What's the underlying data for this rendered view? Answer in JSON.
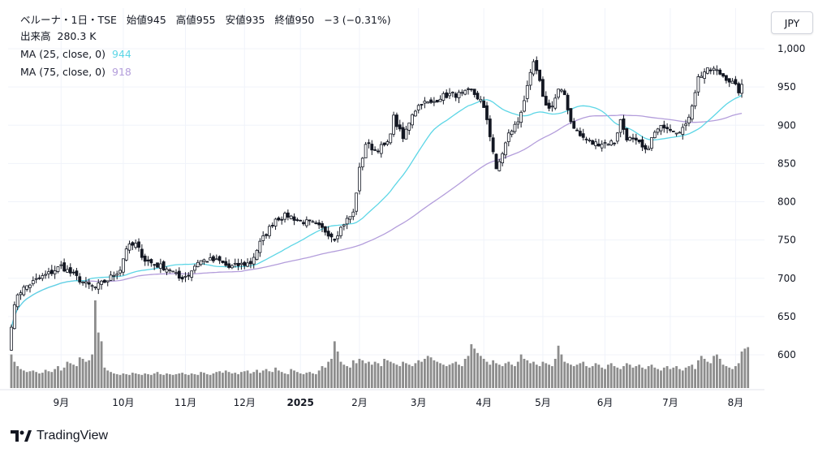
{
  "legend": {
    "symbol": "ベルーナ・1日・TSE",
    "open_label": "始値",
    "open": "945",
    "high_label": "高値",
    "high": "955",
    "low_label": "安値",
    "low": "935",
    "close_label": "終値",
    "close": "950",
    "change": "−3 (−0.31%)",
    "volume_label": "出来高",
    "volume": "280.3 K",
    "ma25_label": "MA (25, close, 0)",
    "ma25_value": "944",
    "ma75_label": "MA (75, close, 0)",
    "ma75_value": "918"
  },
  "currency_button": "JPY",
  "brand": "TradingView",
  "colors": {
    "candle": "#131722",
    "volume": "#8c8c8c",
    "ma25": "#5dd6e6",
    "ma75": "#b39ddb",
    "grid": "#f0f3fa"
  },
  "chart_data": {
    "type": "candlestick",
    "title": "ベルーナ・1日・TSE",
    "currency": "JPY",
    "y_ticks": [
      "1,000",
      "950",
      "900",
      "850",
      "800",
      "750",
      "700",
      "650",
      "600"
    ],
    "ylim": [
      555,
      1010
    ],
    "x_ticks": [
      "9月",
      "10月",
      "11月",
      "12月",
      "2025",
      "2月",
      "3月",
      "4月",
      "5月",
      "6月",
      "7月",
      "8月"
    ],
    "x_tick_index": [
      16,
      36,
      56,
      75,
      93,
      112,
      131,
      152,
      171,
      191,
      212,
      233
    ],
    "price_anchors": [
      [
        0,
        640
      ],
      [
        1,
        662
      ],
      [
        2,
        680
      ],
      [
        5,
        690
      ],
      [
        9,
        700
      ],
      [
        13,
        708
      ],
      [
        16,
        716
      ],
      [
        20,
        704
      ],
      [
        24,
        692
      ],
      [
        27,
        688
      ],
      [
        31,
        698
      ],
      [
        35,
        712
      ],
      [
        37,
        740
      ],
      [
        40,
        744
      ],
      [
        43,
        724
      ],
      [
        46,
        718
      ],
      [
        51,
        712
      ],
      [
        54,
        700
      ],
      [
        57,
        705
      ],
      [
        60,
        722
      ],
      [
        63,
        724
      ],
      [
        67,
        722
      ],
      [
        70,
        714
      ],
      [
        74,
        718
      ],
      [
        77,
        720
      ],
      [
        80,
        746
      ],
      [
        85,
        778
      ],
      [
        89,
        782
      ],
      [
        93,
        775
      ],
      [
        97,
        771
      ],
      [
        101,
        762
      ],
      [
        104,
        753
      ],
      [
        107,
        772
      ],
      [
        110,
        785
      ],
      [
        112,
        842
      ],
      [
        114,
        876
      ],
      [
        117,
        868
      ],
      [
        121,
        875
      ],
      [
        123,
        910
      ],
      [
        126,
        882
      ],
      [
        129,
        916
      ],
      [
        132,
        930
      ],
      [
        135,
        928
      ],
      [
        138,
        937
      ],
      [
        141,
        940
      ],
      [
        145,
        940
      ],
      [
        148,
        945
      ],
      [
        151,
        932
      ],
      [
        153,
        908
      ],
      [
        155,
        866
      ],
      [
        156,
        840
      ],
      [
        157,
        852
      ],
      [
        160,
        888
      ],
      [
        163,
        905
      ],
      [
        166,
        948
      ],
      [
        168,
        982
      ],
      [
        170,
        955
      ],
      [
        172,
        925
      ],
      [
        174,
        925
      ],
      [
        176,
        945
      ],
      [
        178,
        940
      ],
      [
        180,
        905
      ],
      [
        183,
        886
      ],
      [
        187,
        876
      ],
      [
        191,
        877
      ],
      [
        194,
        878
      ],
      [
        196,
        906
      ],
      [
        198,
        884
      ],
      [
        202,
        875
      ],
      [
        204,
        865
      ],
      [
        207,
        890
      ],
      [
        210,
        900
      ],
      [
        214,
        893
      ],
      [
        217,
        898
      ],
      [
        219,
        928
      ],
      [
        221,
        962
      ],
      [
        223,
        970
      ],
      [
        226,
        973
      ],
      [
        230,
        962
      ],
      [
        232,
        955
      ],
      [
        234,
        945
      ],
      [
        235,
        950
      ]
    ],
    "volume_k": [
      230,
      180,
      150,
      130,
      120,
      110,
      115,
      120,
      110,
      100,
      105,
      125,
      115,
      110,
      130,
      150,
      120,
      140,
      180,
      170,
      160,
      150,
      210,
      200,
      180,
      190,
      230,
      600,
      380,
      320,
      140,
      120,
      110,
      100,
      95,
      90,
      100,
      95,
      90,
      105,
      100,
      95,
      90,
      100,
      95,
      90,
      100,
      110,
      95,
      90,
      100,
      95,
      90,
      95,
      100,
      105,
      95,
      90,
      100,
      95,
      90,
      110,
      105,
      95,
      90,
      100,
      110,
      115,
      105,
      120,
      110,
      100,
      105,
      95,
      110,
      115,
      120,
      100,
      110,
      125,
      105,
      120,
      130,
      115,
      110,
      140,
      120,
      110,
      100,
      95,
      130,
      120,
      110,
      100,
      95,
      105,
      110,
      100,
      95,
      120,
      150,
      140,
      180,
      200,
      320,
      250,
      180,
      160,
      150,
      140,
      190,
      170,
      200,
      190,
      170,
      180,
      160,
      180,
      170,
      150,
      200,
      190,
      180,
      170,
      160,
      150,
      180,
      170,
      160,
      150,
      170,
      190,
      180,
      200,
      220,
      210,
      190,
      180,
      170,
      160,
      150,
      160,
      170,
      180,
      160,
      150,
      200,
      220,
      300,
      270,
      240,
      220,
      200,
      180,
      160,
      190,
      170,
      160,
      150,
      170,
      180,
      160,
      150,
      180,
      230,
      200,
      190,
      170,
      180,
      160,
      150,
      180,
      170,
      160,
      150,
      200,
      290,
      230,
      180,
      170,
      160,
      150,
      160,
      170,
      180,
      150,
      140,
      150,
      170,
      160,
      140,
      130,
      160,
      170,
      150,
      140,
      130,
      150,
      170,
      160,
      140,
      150,
      160,
      140,
      130,
      150,
      160,
      140,
      130,
      120,
      140,
      150,
      130,
      140,
      150,
      130,
      120,
      140,
      150,
      160,
      130,
      190,
      220,
      200,
      180,
      170,
      220,
      230,
      200,
      160,
      150,
      140,
      130,
      150,
      170,
      250,
      270,
      280
    ]
  }
}
